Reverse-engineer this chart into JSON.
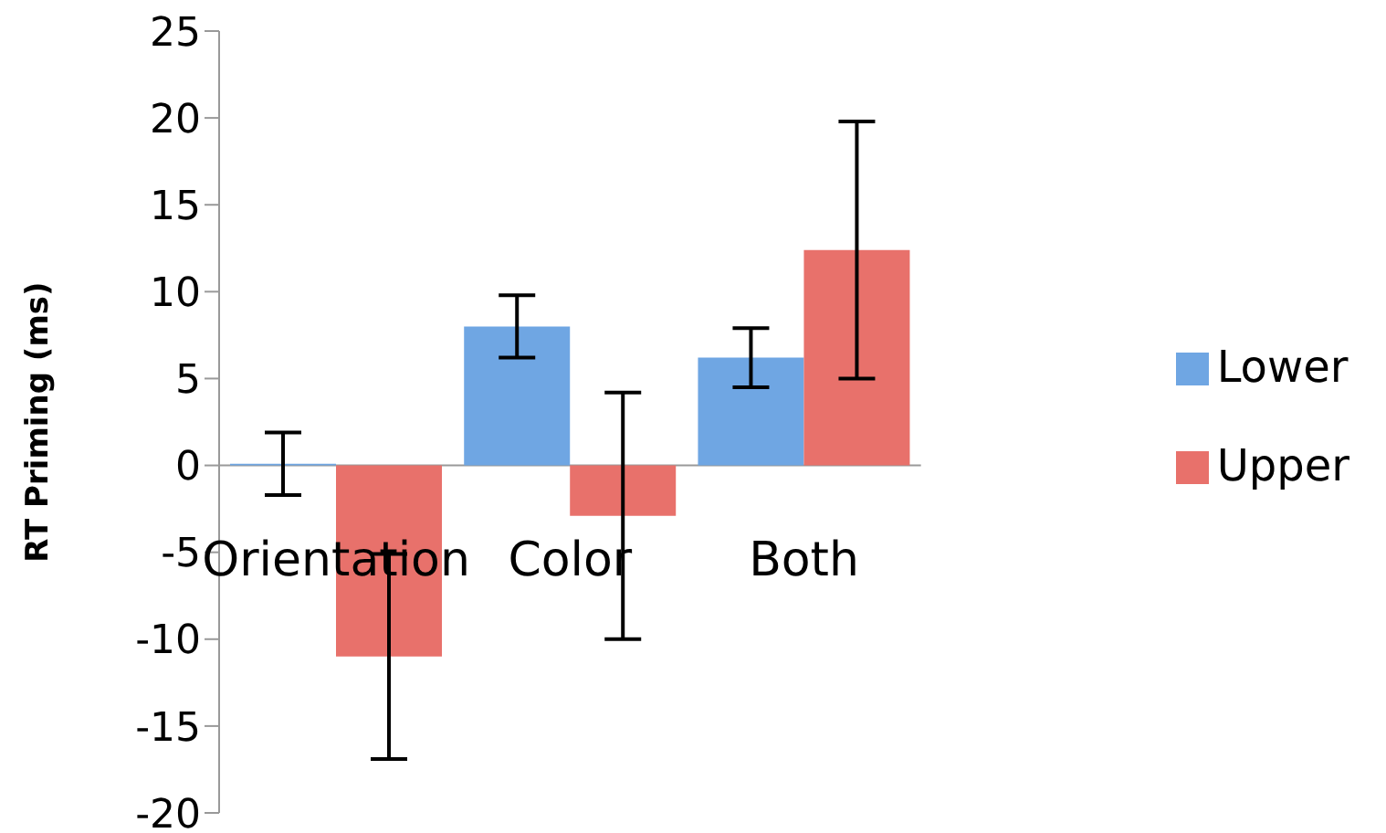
{
  "chart_data": {
    "type": "bar",
    "ylabel": "RT Priming (ms)",
    "categories": [
      "Orientation",
      "Color",
      "Both"
    ],
    "series": [
      {
        "name": "Lower",
        "color": "#6fa6e3",
        "values": [
          0.1,
          8.0,
          6.2
        ],
        "errors": [
          1.8,
          1.8,
          1.7
        ]
      },
      {
        "name": "Upper",
        "color": "#e8716b",
        "values": [
          -11.0,
          -2.9,
          12.4
        ],
        "errors": [
          5.9,
          7.1,
          7.4
        ]
      }
    ],
    "ylim": [
      -20,
      25
    ],
    "yticks": [
      -20,
      -15,
      -10,
      -5,
      0,
      5,
      10,
      15,
      20,
      25
    ],
    "grid": false,
    "legend": "right"
  }
}
